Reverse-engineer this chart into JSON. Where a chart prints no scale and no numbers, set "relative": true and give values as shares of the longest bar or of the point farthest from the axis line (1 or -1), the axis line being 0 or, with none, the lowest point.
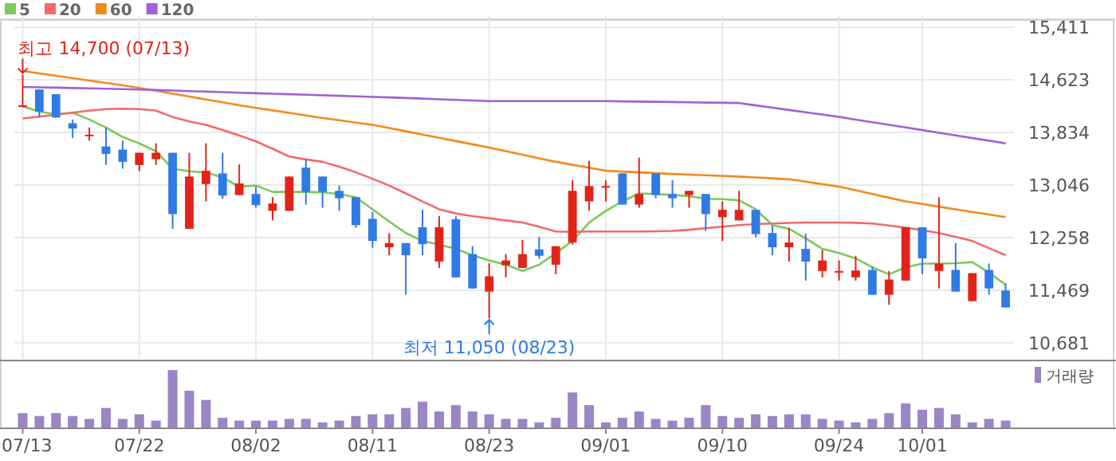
{
  "chart_data": [
    {
      "type": "candlestick",
      "categories": [
        "07/13",
        null,
        null,
        null,
        null,
        null,
        null,
        "07/22",
        null,
        null,
        null,
        null,
        null,
        null,
        "08/02",
        null,
        null,
        null,
        null,
        null,
        null,
        "08/11",
        null,
        null,
        null,
        null,
        null,
        null,
        "08/23",
        null,
        null,
        null,
        null,
        null,
        null,
        "09/01",
        null,
        null,
        null,
        null,
        null,
        null,
        "09/10",
        null,
        null,
        null,
        null,
        null,
        null,
        "09/24",
        null,
        null,
        null,
        null,
        "10/01",
        null,
        null,
        null,
        null,
        null
      ],
      "ohlc": [
        [
          14230,
          14700,
          14220,
          14240
        ],
        [
          14478,
          14478,
          14066,
          14146
        ],
        [
          14407,
          14407,
          14058,
          14058
        ],
        [
          13972,
          14027,
          13750,
          13892
        ],
        [
          13790,
          13908,
          13711,
          13800
        ],
        [
          13624,
          13908,
          13347,
          13513
        ],
        [
          13576,
          13711,
          13291,
          13394
        ],
        [
          13347,
          13529,
          13252,
          13529
        ],
        [
          13434,
          13671,
          13347,
          13529
        ],
        [
          13529,
          13529,
          12390,
          12611
        ],
        [
          12390,
          13529,
          12390,
          13173
        ],
        [
          13062,
          13671,
          12801,
          13260
        ],
        [
          13220,
          13529,
          12840,
          12888
        ],
        [
          12896,
          13355,
          12896,
          13070
        ],
        [
          12912,
          13022,
          12706,
          12745
        ],
        [
          12659,
          12864,
          12516,
          12769
        ],
        [
          12659,
          13173,
          12659,
          13173
        ],
        [
          13307,
          13434,
          12753,
          12943
        ],
        [
          13173,
          13173,
          12706,
          12943
        ],
        [
          12959,
          13038,
          12659,
          12848
        ],
        [
          12864,
          12864,
          12405,
          12445
        ],
        [
          12540,
          12643,
          12105,
          12208
        ],
        [
          12113,
          12326,
          11994,
          12176
        ],
        [
          12176,
          12176,
          11401,
          11994
        ],
        [
          12413,
          12674,
          11994,
          12160
        ],
        [
          11899,
          12579,
          11804,
          12413
        ],
        [
          12532,
          12579,
          11662,
          11662
        ],
        [
          12010,
          12129,
          11496,
          11496
        ],
        [
          11448,
          11875,
          11050,
          11678
        ],
        [
          11844,
          12010,
          11662,
          11915
        ],
        [
          11804,
          12224,
          11804,
          12010
        ],
        [
          12081,
          12271,
          11939,
          11986
        ],
        [
          11852,
          12129,
          11709,
          12129
        ],
        [
          12184,
          13117,
          12152,
          12959
        ],
        [
          12801,
          13410,
          12659,
          13030
        ],
        [
          13015,
          13117,
          12801,
          13030
        ],
        [
          13220,
          13220,
          12753,
          12753
        ],
        [
          12753,
          13457,
          12706,
          12912
        ],
        [
          13220,
          13220,
          12848,
          12896
        ],
        [
          12912,
          13117,
          12706,
          12848
        ],
        [
          12896,
          12959,
          12706,
          12959
        ],
        [
          12912,
          12912,
          12358,
          12611
        ],
        [
          12564,
          12801,
          12208,
          12674
        ],
        [
          12516,
          12959,
          12516,
          12674
        ],
        [
          12674,
          12674,
          12263,
          12310
        ],
        [
          12326,
          12437,
          11994,
          12113
        ],
        [
          12113,
          12405,
          11899,
          12184
        ],
        [
          12089,
          12318,
          11614,
          11899
        ],
        [
          11757,
          12073,
          11662,
          11915
        ],
        [
          11750,
          11915,
          11614,
          11757
        ],
        [
          11662,
          11986,
          11614,
          11765
        ],
        [
          11773,
          11820,
          11401,
          11401
        ],
        [
          11401,
          11757,
          11251,
          11630
        ],
        [
          11614,
          12413,
          11614,
          12413
        ],
        [
          12413,
          12413,
          11709,
          11947
        ],
        [
          11757,
          12864,
          11496,
          11868
        ],
        [
          11773,
          12176,
          11448,
          11448
        ],
        [
          11306,
          11725,
          11306,
          11725
        ],
        [
          11773,
          11868,
          11401,
          11496
        ],
        [
          11464,
          11567,
          11211,
          11211
        ]
      ],
      "colors": [
        "#e2231a",
        "#2f7ae5",
        "#2f7ae5",
        "#2f7ae5",
        "#e2231a",
        "#2f7ae5",
        "#2f7ae5",
        "#e2231a",
        "#e2231a",
        "#2f7ae5",
        "#e2231a",
        "#e2231a",
        "#2f7ae5",
        "#e2231a",
        "#2f7ae5",
        "#e2231a",
        "#e2231a",
        "#2f7ae5",
        "#2f7ae5",
        "#2f7ae5",
        "#2f7ae5",
        "#2f7ae5",
        "#e2231a",
        "#2f7ae5",
        "#2f7ae5",
        "#e2231a",
        "#2f7ae5",
        "#2f7ae5",
        "#e2231a",
        "#e2231a",
        "#e2231a",
        "#2f7ae5",
        "#e2231a",
        "#e2231a",
        "#e2231a",
        "#e2231a",
        "#2f7ae5",
        "#e2231a",
        "#2f7ae5",
        "#2f7ae5",
        "#e2231a",
        "#2f7ae5",
        "#e2231a",
        "#e2231a",
        "#2f7ae5",
        "#2f7ae5",
        "#e2231a",
        "#2f7ae5",
        "#e2231a",
        "#e2231a",
        "#e2231a",
        "#2f7ae5",
        "#e2231a",
        "#e2231a",
        "#2f7ae5",
        "#e2231a",
        "#2f7ae5",
        "#e2231a",
        "#2f7ae5",
        "#2f7ae5"
      ],
      "series": [
        {
          "name": "5",
          "type": "line",
          "color": "#7cc95a",
          "values": [
            14225,
            14146,
            14106,
            14130,
            14027,
            13908,
            13766,
            13671,
            13552,
            13291,
            13252,
            13236,
            13157,
            13022,
            13038,
            12943,
            12943,
            12943,
            12935,
            12912,
            12864,
            12682,
            12500,
            12326,
            12208,
            12152,
            12089,
            11994,
            11915,
            11852,
            11757,
            11852,
            12026,
            12208,
            12484,
            12659,
            12801,
            12920,
            12912,
            12896,
            12880,
            12840,
            12833,
            12817,
            12682,
            12445,
            12390,
            12247,
            12089,
            12026,
            11947,
            11812,
            11709,
            11812,
            11868,
            11868,
            11875,
            11891,
            11733,
            11551
          ]
        },
        {
          "name": "20",
          "type": "line",
          "color": "#f26a6a",
          "values": [
            14043,
            14070,
            14100,
            14130,
            14160,
            14185,
            14190,
            14185,
            14161,
            14066,
            14000,
            13948,
            13870,
            13790,
            13700,
            13590,
            13473,
            13430,
            13394,
            13320,
            13236,
            13140,
            13038,
            12920,
            12800,
            12682,
            12620,
            12580,
            12548,
            12515,
            12484,
            12420,
            12350,
            12345,
            12350,
            12350,
            12350,
            12350,
            12352,
            12358,
            12375,
            12400,
            12421,
            12445,
            12460,
            12469,
            12478,
            12484,
            12484,
            12484,
            12480,
            12469,
            12440,
            12405,
            12370,
            12326,
            12270,
            12208,
            12100,
            11994
          ]
        },
        {
          "name": "60",
          "type": "line",
          "color": "#f28a1c",
          "values": [
            14755,
            14720,
            14684,
            14648,
            14612,
            14576,
            14540,
            14502,
            14459,
            14415,
            14372,
            14328,
            14285,
            14241,
            14203,
            14165,
            14127,
            14089,
            14051,
            14017,
            13982,
            13948,
            13900,
            13851,
            13802,
            13754,
            13705,
            13657,
            13608,
            13555,
            13500,
            13447,
            13394,
            13349,
            13305,
            13260,
            13248,
            13236,
            13224,
            13212,
            13202,
            13192,
            13183,
            13173,
            13160,
            13146,
            13133,
            13096,
            13059,
            13022,
            12967,
            12912,
            12856,
            12801,
            12761,
            12722,
            12682,
            12643,
            12603,
            12564
          ]
        },
        {
          "name": "120",
          "type": "line",
          "color": "#a25fd6",
          "values": [
            14517,
            14511,
            14506,
            14500,
            14495,
            14489,
            14484,
            14478,
            14470,
            14462,
            14454,
            14446,
            14438,
            14430,
            14422,
            14414,
            14407,
            14399,
            14391,
            14383,
            14375,
            14367,
            14359,
            14350,
            14341,
            14331,
            14322,
            14313,
            14304,
            14304,
            14304,
            14304,
            14304,
            14304,
            14304,
            14304,
            14300,
            14297,
            14293,
            14290,
            14286,
            14282,
            14279,
            14275,
            14240,
            14206,
            14171,
            14136,
            14102,
            14067,
            14027,
            13988,
            13948,
            13909,
            13869,
            13829,
            13790,
            13750,
            13711,
            13671
          ]
        }
      ],
      "ylim": [
        10440,
        15580
      ],
      "yticks": [
        {
          "value": 10681,
          "label": "10,681"
        },
        {
          "value": 11469,
          "label": "11,469"
        },
        {
          "value": 12258,
          "label": "12,258"
        },
        {
          "value": 13046,
          "label": "13,046"
        },
        {
          "value": 13834,
          "label": "13,834"
        },
        {
          "value": 14623,
          "label": "14,623"
        },
        {
          "value": 15411,
          "label": "15,411"
        }
      ],
      "grid": true,
      "legend": "top left",
      "tick_labels": "y",
      "annotations": [
        {
          "text": "최고 14,700 (07/13)",
          "x": "07/13",
          "y": 14700
        },
        {
          "text": "최저 11,050 (08/23)",
          "x": "08/23",
          "y": 11050
        }
      ]
    },
    {
      "type": "bar",
      "relative": true,
      "categories": [
        "07/13",
        null,
        null,
        null,
        null,
        null,
        null,
        "07/22",
        null,
        null,
        null,
        null,
        null,
        null,
        "08/02",
        null,
        null,
        null,
        null,
        null,
        null,
        "08/11",
        null,
        null,
        null,
        null,
        null,
        null,
        "08/23",
        null,
        null,
        null,
        null,
        null,
        null,
        "09/01",
        null,
        null,
        null,
        null,
        null,
        null,
        "09/10",
        null,
        null,
        null,
        null,
        null,
        null,
        "09/24",
        null,
        null,
        null,
        null,
        "10/01",
        null,
        null,
        null,
        null,
        null
      ],
      "series": [
        {
          "name": "거래량",
          "color": "#9b85c4",
          "values": [
            0.25,
            0.2,
            0.25,
            0.2,
            0.15,
            0.34,
            0.15,
            0.23,
            0.12,
            1,
            0.64,
            0.48,
            0.17,
            0.12,
            0.12,
            0.12,
            0.15,
            0.15,
            0.09,
            0.12,
            0.2,
            0.23,
            0.23,
            0.34,
            0.45,
            0.28,
            0.39,
            0.28,
            0.23,
            0.15,
            0.15,
            0.09,
            0.17,
            0.61,
            0.39,
            0.09,
            0.17,
            0.28,
            0.15,
            0.12,
            0.17,
            0.39,
            0.2,
            0.17,
            0.23,
            0.2,
            0.23,
            0.23,
            0.15,
            0.12,
            0.09,
            0.15,
            0.25,
            0.42,
            0.31,
            0.34,
            0.23,
            0.09,
            0.15,
            0.12
          ]
        }
      ],
      "legend": "top right",
      "tick_labels": "x"
    }
  ]
}
